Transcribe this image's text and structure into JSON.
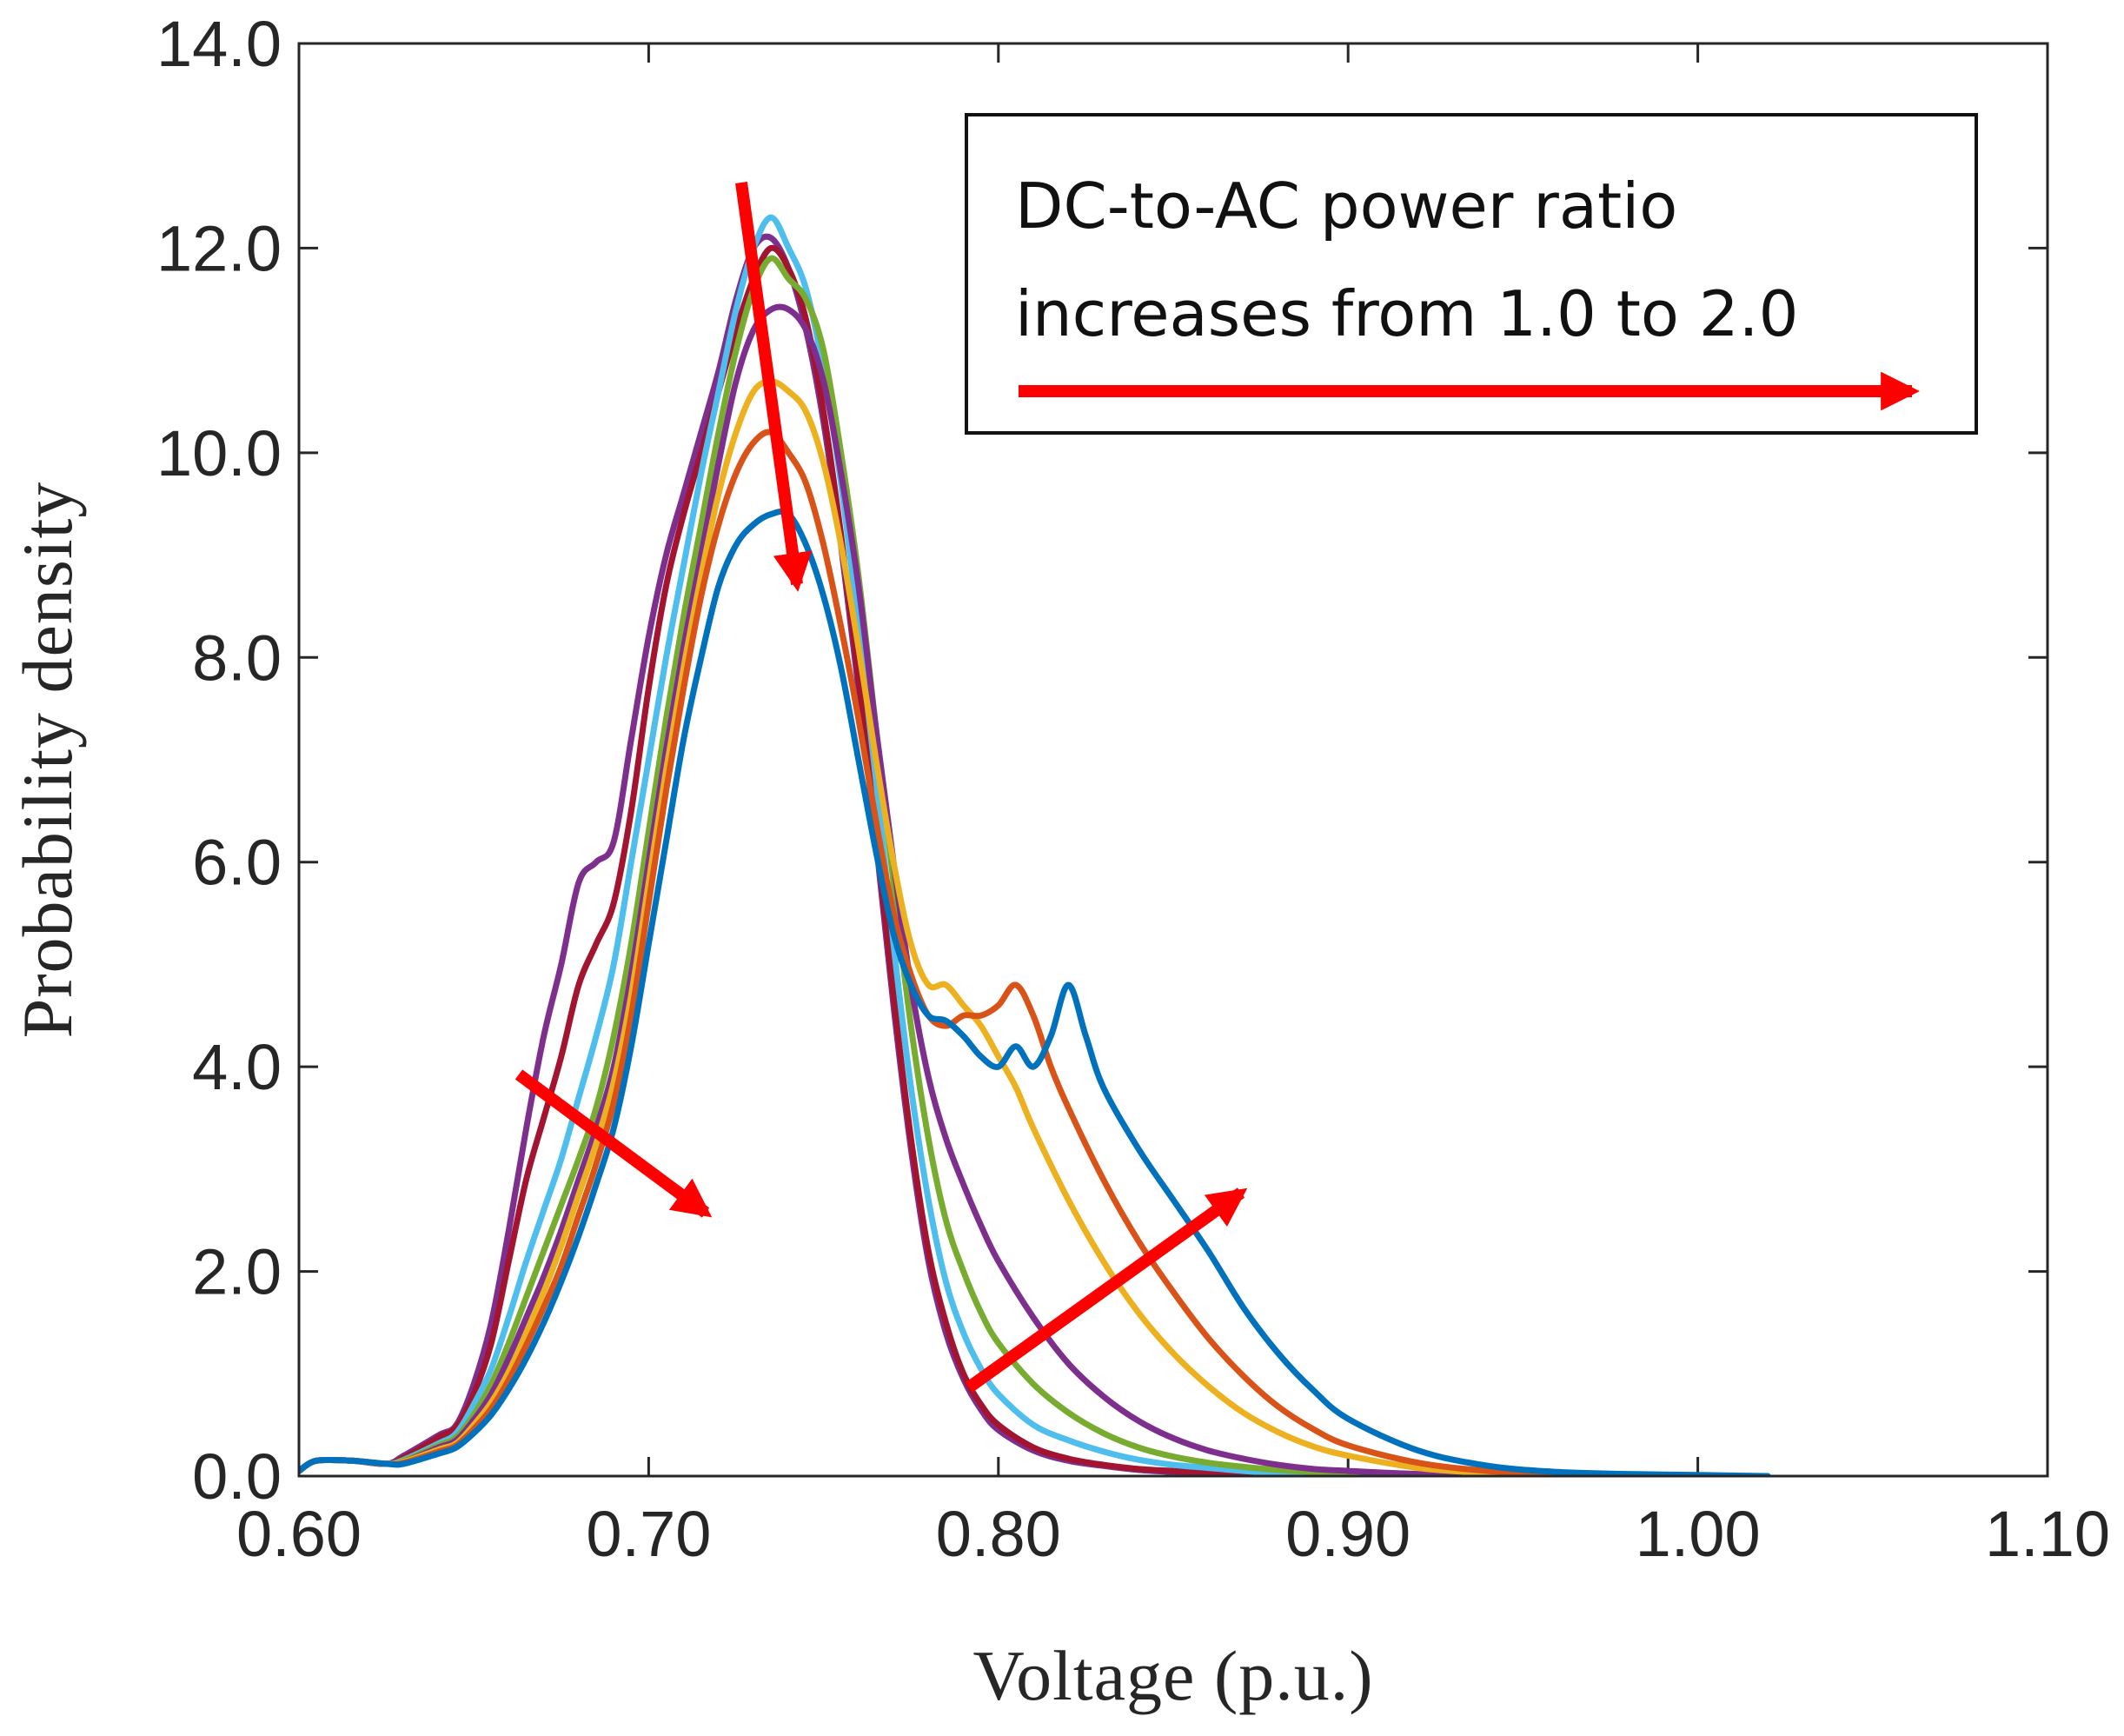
{
  "chart_data": {
    "type": "line",
    "title": "",
    "xlabel": "Voltage (p.u.)",
    "ylabel": "Probability density",
    "xlim": [
      0.6,
      1.1
    ],
    "ylim": [
      0.0,
      14.0
    ],
    "x_ticks": [
      0.6,
      0.7,
      0.8,
      0.9,
      1.0,
      1.1
    ],
    "x_tick_labels": [
      "0.60",
      "0.70",
      "0.80",
      "0.90",
      "1.00",
      "1.10"
    ],
    "y_ticks": [
      0,
      2,
      4,
      6,
      8,
      10,
      12,
      14
    ],
    "y_tick_labels": [
      "0.0",
      "2.0",
      "4.0",
      "6.0",
      "8.0",
      "10.0",
      "12.0",
      "14.0"
    ],
    "grid": false,
    "annotation": {
      "line1": "DC-to-AC power ratio",
      "line2": "increases from 1.0 to 2.0"
    },
    "arrow_color": "#ff0000",
    "series": [
      {
        "color": "#7e2f8e",
        "x": [
          0.6,
          0.605,
          0.615,
          0.625,
          0.63,
          0.64,
          0.645,
          0.65,
          0.655,
          0.66,
          0.665,
          0.67,
          0.675,
          0.68,
          0.685,
          0.69,
          0.695,
          0.7,
          0.705,
          0.71,
          0.715,
          0.72,
          0.725,
          0.73,
          0.735,
          0.74,
          0.745,
          0.75,
          0.755,
          0.76,
          0.765,
          0.77,
          0.775,
          0.78,
          0.785,
          0.79,
          0.795,
          0.8,
          0.81,
          0.82,
          0.83,
          0.84,
          0.85,
          0.86,
          0.87,
          0.88,
          0.89
        ],
        "y": [
          0.05,
          0.15,
          0.15,
          0.12,
          0.2,
          0.4,
          0.5,
          0.9,
          1.5,
          2.4,
          3.4,
          4.3,
          5.0,
          5.8,
          6.0,
          6.2,
          7.2,
          8.2,
          9.0,
          9.6,
          10.2,
          10.8,
          11.5,
          12.0,
          12.1,
          11.8,
          11.2,
          10.3,
          9.1,
          7.7,
          6.2,
          4.6,
          3.2,
          2.1,
          1.4,
          0.95,
          0.65,
          0.45,
          0.25,
          0.15,
          0.1,
          0.06,
          0.04,
          0.03,
          0.02,
          0.01,
          0.0
        ]
      },
      {
        "color": "#a2142f",
        "x": [
          0.6,
          0.605,
          0.615,
          0.625,
          0.63,
          0.64,
          0.645,
          0.65,
          0.655,
          0.66,
          0.665,
          0.67,
          0.675,
          0.68,
          0.685,
          0.69,
          0.695,
          0.7,
          0.705,
          0.71,
          0.715,
          0.72,
          0.725,
          0.73,
          0.735,
          0.74,
          0.745,
          0.75,
          0.755,
          0.76,
          0.765,
          0.77,
          0.775,
          0.78,
          0.785,
          0.79,
          0.795,
          0.8,
          0.81,
          0.82,
          0.83,
          0.84,
          0.85,
          0.86,
          0.87,
          0.88,
          0.89,
          0.9
        ],
        "y": [
          0.05,
          0.15,
          0.15,
          0.12,
          0.18,
          0.38,
          0.48,
          0.8,
          1.3,
          2.1,
          2.9,
          3.5,
          4.1,
          4.8,
          5.2,
          5.6,
          6.5,
          7.7,
          8.7,
          9.4,
          10.0,
          10.6,
          11.2,
          11.7,
          12.0,
          11.8,
          11.3,
          10.4,
          9.2,
          7.8,
          6.3,
          4.7,
          3.3,
          2.2,
          1.5,
          1.0,
          0.7,
          0.5,
          0.28,
          0.17,
          0.11,
          0.07,
          0.05,
          0.03,
          0.02,
          0.01,
          0.0,
          0.0
        ]
      },
      {
        "color": "#4dbeee",
        "x": [
          0.6,
          0.605,
          0.615,
          0.625,
          0.63,
          0.64,
          0.645,
          0.65,
          0.655,
          0.66,
          0.665,
          0.67,
          0.675,
          0.68,
          0.685,
          0.69,
          0.695,
          0.7,
          0.705,
          0.71,
          0.715,
          0.72,
          0.725,
          0.73,
          0.735,
          0.74,
          0.745,
          0.75,
          0.755,
          0.76,
          0.765,
          0.77,
          0.775,
          0.78,
          0.785,
          0.79,
          0.795,
          0.8,
          0.81,
          0.82,
          0.83,
          0.84,
          0.85,
          0.86,
          0.87,
          0.88,
          0.89,
          0.9,
          0.92,
          0.94,
          0.96,
          0.98
        ],
        "y": [
          0.05,
          0.15,
          0.15,
          0.12,
          0.16,
          0.32,
          0.42,
          0.7,
          1.05,
          1.55,
          2.1,
          2.6,
          3.1,
          3.7,
          4.3,
          5.0,
          6.0,
          7.0,
          8.0,
          8.9,
          9.8,
          10.6,
          11.4,
          12.0,
          12.3,
          12.0,
          11.6,
          10.8,
          9.7,
          8.3,
          6.8,
          5.2,
          3.8,
          2.7,
          1.9,
          1.4,
          1.05,
          0.8,
          0.5,
          0.35,
          0.24,
          0.16,
          0.11,
          0.08,
          0.05,
          0.03,
          0.02,
          0.01,
          0.0,
          0.0,
          0.0,
          0.0
        ]
      },
      {
        "color": "#77ac30",
        "x": [
          0.6,
          0.605,
          0.615,
          0.625,
          0.63,
          0.64,
          0.645,
          0.65,
          0.655,
          0.66,
          0.665,
          0.67,
          0.675,
          0.68,
          0.685,
          0.69,
          0.695,
          0.7,
          0.705,
          0.71,
          0.715,
          0.72,
          0.725,
          0.73,
          0.735,
          0.74,
          0.745,
          0.75,
          0.755,
          0.76,
          0.765,
          0.77,
          0.775,
          0.78,
          0.785,
          0.79,
          0.795,
          0.8,
          0.81,
          0.82,
          0.83,
          0.84,
          0.85,
          0.86,
          0.87,
          0.88,
          0.89,
          0.9,
          0.92,
          0.94
        ],
        "y": [
          0.05,
          0.15,
          0.15,
          0.12,
          0.15,
          0.3,
          0.38,
          0.6,
          0.9,
          1.3,
          1.75,
          2.2,
          2.65,
          3.1,
          3.6,
          4.3,
          5.2,
          6.3,
          7.4,
          8.4,
          9.3,
          10.2,
          11.0,
          11.6,
          11.9,
          11.7,
          11.5,
          11.0,
          10.0,
          8.8,
          7.3,
          5.8,
          4.4,
          3.3,
          2.5,
          2.0,
          1.6,
          1.3,
          0.9,
          0.62,
          0.42,
          0.28,
          0.19,
          0.13,
          0.09,
          0.06,
          0.04,
          0.02,
          0.01,
          0.0
        ]
      },
      {
        "color": "#7e2f8e",
        "x": [
          0.6,
          0.605,
          0.615,
          0.625,
          0.63,
          0.64,
          0.645,
          0.65,
          0.655,
          0.66,
          0.665,
          0.67,
          0.675,
          0.68,
          0.685,
          0.69,
          0.695,
          0.7,
          0.705,
          0.71,
          0.715,
          0.72,
          0.725,
          0.73,
          0.735,
          0.74,
          0.745,
          0.75,
          0.755,
          0.76,
          0.765,
          0.77,
          0.775,
          0.78,
          0.785,
          0.79,
          0.795,
          0.8,
          0.81,
          0.82,
          0.83,
          0.84,
          0.85,
          0.86,
          0.87,
          0.88,
          0.89,
          0.9,
          0.92,
          0.94,
          0.96
        ],
        "y": [
          0.05,
          0.15,
          0.15,
          0.12,
          0.14,
          0.28,
          0.35,
          0.55,
          0.8,
          1.15,
          1.55,
          1.95,
          2.4,
          2.9,
          3.4,
          4.0,
          4.9,
          6.0,
          7.1,
          8.1,
          9.0,
          9.9,
          10.7,
          11.2,
          11.4,
          11.4,
          11.2,
          10.7,
          9.8,
          8.7,
          7.3,
          6.0,
          4.8,
          3.9,
          3.3,
          2.85,
          2.45,
          2.1,
          1.55,
          1.1,
          0.78,
          0.54,
          0.37,
          0.25,
          0.17,
          0.11,
          0.07,
          0.05,
          0.02,
          0.01,
          0.0
        ]
      },
      {
        "color": "#edb120",
        "x": [
          0.6,
          0.605,
          0.615,
          0.625,
          0.63,
          0.64,
          0.645,
          0.65,
          0.655,
          0.66,
          0.665,
          0.67,
          0.675,
          0.68,
          0.685,
          0.69,
          0.695,
          0.7,
          0.705,
          0.71,
          0.715,
          0.72,
          0.725,
          0.73,
          0.735,
          0.74,
          0.745,
          0.75,
          0.755,
          0.76,
          0.765,
          0.77,
          0.775,
          0.78,
          0.785,
          0.79,
          0.795,
          0.8,
          0.805,
          0.81,
          0.82,
          0.83,
          0.84,
          0.85,
          0.86,
          0.87,
          0.88,
          0.89,
          0.9,
          0.92,
          0.94,
          0.96,
          0.98,
          1.0
        ],
        "y": [
          0.05,
          0.15,
          0.15,
          0.12,
          0.14,
          0.26,
          0.32,
          0.5,
          0.72,
          1.02,
          1.4,
          1.8,
          2.25,
          2.75,
          3.25,
          3.85,
          4.7,
          5.8,
          6.9,
          7.9,
          8.8,
          9.6,
          10.2,
          10.6,
          10.7,
          10.6,
          10.4,
          9.9,
          9.1,
          8.1,
          7.0,
          6.0,
          5.2,
          4.8,
          4.8,
          4.6,
          4.4,
          4.1,
          3.8,
          3.4,
          2.7,
          2.1,
          1.6,
          1.2,
          0.88,
          0.62,
          0.43,
          0.29,
          0.2,
          0.08,
          0.03,
          0.01,
          0.0,
          0.0
        ]
      },
      {
        "color": "#d95319",
        "x": [
          0.6,
          0.605,
          0.615,
          0.625,
          0.63,
          0.64,
          0.645,
          0.65,
          0.655,
          0.66,
          0.665,
          0.67,
          0.675,
          0.68,
          0.685,
          0.69,
          0.695,
          0.7,
          0.705,
          0.71,
          0.715,
          0.72,
          0.725,
          0.73,
          0.735,
          0.74,
          0.745,
          0.75,
          0.755,
          0.76,
          0.765,
          0.77,
          0.775,
          0.78,
          0.785,
          0.79,
          0.795,
          0.8,
          0.805,
          0.81,
          0.815,
          0.82,
          0.83,
          0.84,
          0.85,
          0.86,
          0.87,
          0.88,
          0.89,
          0.9,
          0.92,
          0.94,
          0.96,
          0.98,
          1.0
        ],
        "y": [
          0.05,
          0.15,
          0.15,
          0.12,
          0.13,
          0.24,
          0.3,
          0.46,
          0.66,
          0.94,
          1.28,
          1.65,
          2.05,
          2.55,
          3.05,
          3.65,
          4.5,
          5.6,
          6.7,
          7.7,
          8.6,
          9.3,
          9.8,
          10.1,
          10.2,
          10.0,
          9.7,
          9.1,
          8.3,
          7.4,
          6.4,
          5.5,
          4.9,
          4.5,
          4.4,
          4.5,
          4.5,
          4.6,
          4.8,
          4.5,
          4.0,
          3.6,
          2.9,
          2.3,
          1.8,
          1.35,
          0.98,
          0.68,
          0.46,
          0.3,
          0.13,
          0.05,
          0.02,
          0.01,
          0.0
        ]
      },
      {
        "color": "#0072bd",
        "x": [
          0.6,
          0.605,
          0.615,
          0.625,
          0.63,
          0.64,
          0.645,
          0.65,
          0.655,
          0.66,
          0.665,
          0.67,
          0.675,
          0.68,
          0.685,
          0.69,
          0.695,
          0.7,
          0.705,
          0.71,
          0.715,
          0.72,
          0.725,
          0.73,
          0.735,
          0.74,
          0.745,
          0.75,
          0.755,
          0.76,
          0.765,
          0.77,
          0.775,
          0.78,
          0.785,
          0.79,
          0.795,
          0.8,
          0.805,
          0.81,
          0.815,
          0.82,
          0.825,
          0.83,
          0.84,
          0.85,
          0.86,
          0.87,
          0.88,
          0.89,
          0.9,
          0.92,
          0.94,
          0.96,
          0.98,
          1.0,
          1.02
        ],
        "y": [
          0.05,
          0.15,
          0.15,
          0.12,
          0.12,
          0.22,
          0.28,
          0.42,
          0.6,
          0.85,
          1.15,
          1.5,
          1.9,
          2.35,
          2.85,
          3.4,
          4.2,
          5.2,
          6.2,
          7.2,
          8.0,
          8.7,
          9.1,
          9.3,
          9.4,
          9.4,
          9.1,
          8.6,
          7.9,
          7.0,
          6.1,
          5.3,
          4.8,
          4.5,
          4.45,
          4.3,
          4.1,
          4.0,
          4.2,
          4.0,
          4.3,
          4.8,
          4.3,
          3.8,
          3.2,
          2.7,
          2.2,
          1.65,
          1.2,
          0.84,
          0.56,
          0.25,
          0.1,
          0.04,
          0.02,
          0.01,
          0.0
        ]
      }
    ]
  }
}
